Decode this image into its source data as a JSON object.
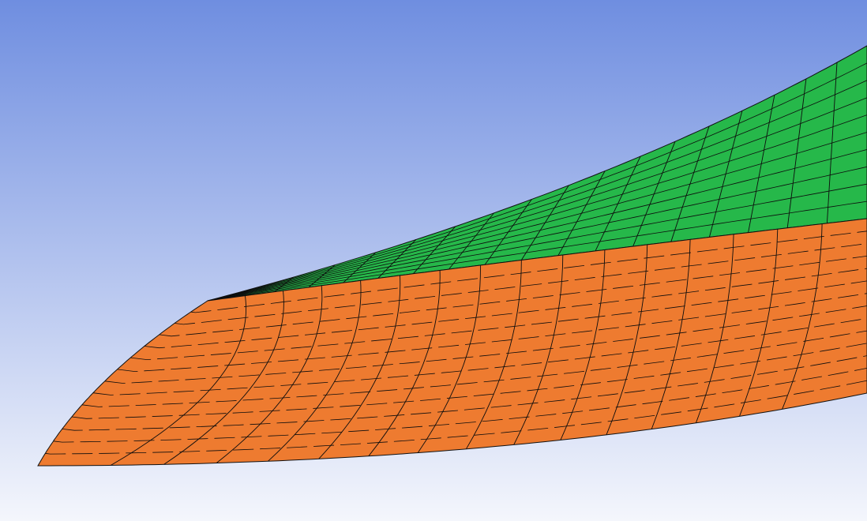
{
  "viewport": {
    "background_top": "#6f8ee0",
    "background_bottom": "#f4f6fc"
  },
  "surfaces": {
    "top_face": {
      "fill": "#26b84a",
      "grid_rows": 10,
      "grid_cols": 18
    },
    "side_face": {
      "fill": "#ee7b30",
      "grid_rows": 14,
      "grid_cols": 16
    }
  },
  "mesh_line_color": "#0d0d0d",
  "outline_color": "#111111"
}
